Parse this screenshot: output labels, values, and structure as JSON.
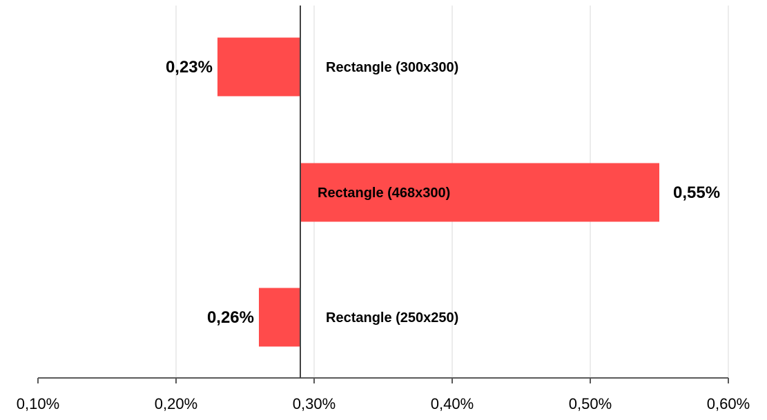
{
  "chart_data": {
    "type": "bar",
    "orientation": "horizontal",
    "baseline": 0.29,
    "categories": [
      "Rectangle (300x300)",
      "Rectangle (468x300)",
      "Rectangle (250x250)"
    ],
    "values": [
      0.23,
      0.55,
      0.26
    ],
    "value_labels": [
      "0,23%",
      "0,55%",
      "0,26%"
    ],
    "xlim": [
      0.1,
      0.6
    ],
    "x_ticks": [
      0.1,
      0.2,
      0.3,
      0.4,
      0.5,
      0.6
    ],
    "x_tick_labels": [
      "0,10%",
      "0,20%",
      "0,30%",
      "0,40%",
      "0,50%",
      "0,60%"
    ],
    "grid": true,
    "title": "",
    "xlabel": "",
    "ylabel": "",
    "colors": {
      "bar": "#ff4b4b",
      "grid": "#d9d9d9",
      "axis": "#595959",
      "baseline": "#404040"
    }
  }
}
